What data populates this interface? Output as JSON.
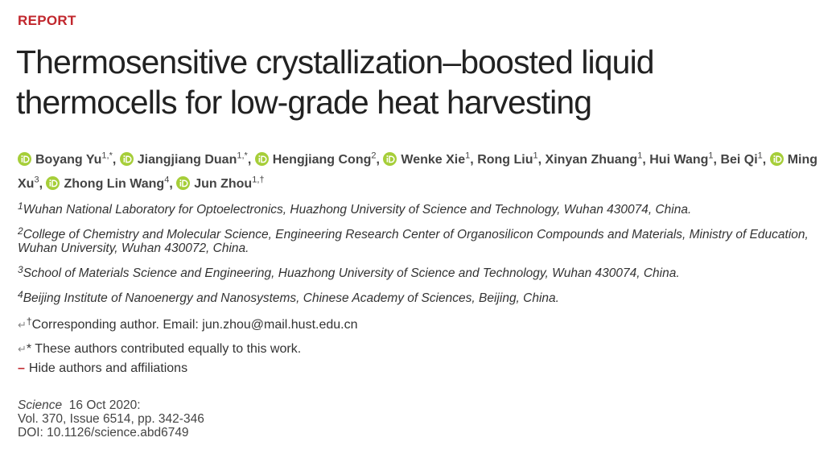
{
  "header": {
    "label": "REPORT",
    "title": "Thermosensitive crystallization–boosted liquid thermocells for low-grade heat harvesting"
  },
  "authors": {
    "separator": ",",
    "list": [
      {
        "name": "Boyang Yu",
        "sup": "1,*",
        "orcid": true
      },
      {
        "name": "Jiangjiang Duan",
        "sup": "1,*",
        "orcid": true
      },
      {
        "name": "Hengjiang Cong",
        "sup": "2",
        "orcid": true
      },
      {
        "name": "Wenke Xie",
        "sup": "1",
        "orcid": true
      },
      {
        "name": "Rong Liu",
        "sup": "1",
        "orcid": false
      },
      {
        "name": "Xinyan Zhuang",
        "sup": "1",
        "orcid": false
      },
      {
        "name": "Hui Wang",
        "sup": "1",
        "orcid": false
      },
      {
        "name": "Bei Qi",
        "sup": "1",
        "orcid": false
      },
      {
        "name": "Ming Xu",
        "sup": "3",
        "orcid": true
      },
      {
        "name": "Zhong Lin Wang",
        "sup": "4",
        "orcid": true
      },
      {
        "name": "Jun Zhou",
        "sup": "1,†",
        "orcid": true
      }
    ]
  },
  "affiliations": [
    {
      "num": "1",
      "text": "Wuhan National Laboratory for Optoelectronics, Huazhong University of Science and Technology, Wuhan 430074, China."
    },
    {
      "num": "2",
      "text": "College of Chemistry and Molecular Science, Engineering Research Center of Organosilicon Compounds and Materials, Ministry of Education, Wuhan University, Wuhan 430072, China."
    },
    {
      "num": "3",
      "text": "School of Materials Science and Engineering, Huazhong University of Science and Technology, Wuhan 430074, China."
    },
    {
      "num": "4",
      "text": "Beijing Institute of Nanoenergy and Nanosystems, Chinese Academy of Sciences, Beijing, China."
    }
  ],
  "notes": {
    "corresponding": {
      "marker": "↵",
      "symbol": "†",
      "text": "Corresponding author. Email: jun.zhou@mail.hust.edu.cn"
    },
    "equal": {
      "marker": "↵",
      "symbol": "*",
      "text": " These authors contributed equally to this work."
    }
  },
  "toggle": {
    "icon": "–",
    "text": "Hide authors and affiliations"
  },
  "citation": {
    "journal": "Science",
    "date": "16 Oct 2020:",
    "volume": "Vol. 370, Issue 6514, pp. 342-346",
    "doi": "DOI: 10.1126/science.abd6749"
  }
}
